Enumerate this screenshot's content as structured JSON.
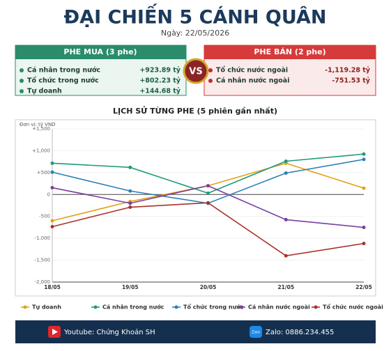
{
  "header": {
    "title": "ĐẠI CHIẾN 5 CÁNH QUÂN",
    "date": "Ngày: 22/05/2026"
  },
  "panels": {
    "buy": {
      "title": "PHE MUA  (3 phe)",
      "rows": [
        [
          "Cá nhân trong nước",
          "+923.89 tỷ"
        ],
        [
          "Tổ chức trong nước",
          "+802.23 tỷ"
        ],
        [
          "Tự doanh",
          "+144.68 tỷ"
        ]
      ]
    },
    "vs": "VS",
    "sell": {
      "title": "PHE BÁN  (2 phe)",
      "rows": [
        [
          "Tổ chức nước ngoài",
          "-1,119.28 tỷ"
        ],
        [
          "Cá nhân nước ngoài",
          "-751.53 tỷ"
        ]
      ]
    }
  },
  "chart_data": {
    "type": "line",
    "title": "LỊCH SỬ TỪNG PHE (5 phiên gần nhất)",
    "unit": "Đơn vị: tỷ VND",
    "categories": [
      "18/05",
      "19/05",
      "20/05",
      "21/05",
      "22/05"
    ],
    "series": [
      {
        "name": "Tự doanh",
        "color": "#e3a21a",
        "values": [
          -600,
          -160,
          200,
          715,
          144.68
        ]
      },
      {
        "name": "Cá nhân trong nước",
        "color": "#1f9a7a",
        "values": [
          715,
          620,
          30,
          760,
          923.89
        ]
      },
      {
        "name": "Tổ chức trong nước",
        "color": "#2a7fb8",
        "values": [
          510,
          80,
          -200,
          490,
          802.23
        ]
      },
      {
        "name": "Cá nhân nước ngoài",
        "color": "#7b3f9e",
        "values": [
          155,
          -200,
          200,
          -575,
          -751.53
        ]
      },
      {
        "name": "Tổ chức nước ngoài",
        "color": "#a8322a",
        "values": [
          -735,
          -290,
          -190,
          -1400,
          -1119.28
        ]
      }
    ],
    "ylim": [
      -2000,
      1500
    ],
    "yticks": [
      {
        "value": -2000,
        "label": "-2,000"
      },
      {
        "value": -1500,
        "label": "-1,500"
      },
      {
        "value": -1000,
        "label": "-1,000"
      },
      {
        "value": -500,
        "label": "-500"
      },
      0,
      {
        "value": 500,
        "label": "+500"
      },
      {
        "value": 1000,
        "label": "+1,000"
      },
      {
        "value": 1500,
        "label": "+1,500"
      }
    ],
    "grid": true
  },
  "footer": {
    "youtube": "Youtube: Chứng Khoán SH",
    "zalo_icon": "Zalo",
    "zalo": "Zalo: 0886.234.455"
  }
}
